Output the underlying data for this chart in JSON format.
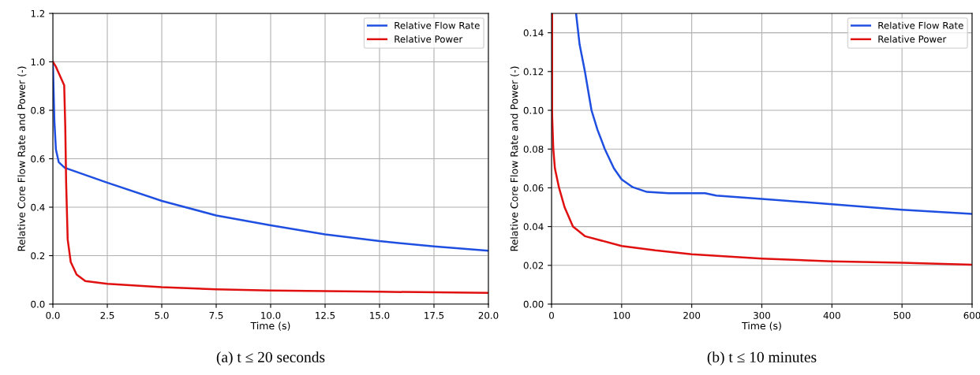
{
  "chart_data": [
    {
      "type": "line",
      "xlabel": "Time (s)",
      "ylabel": "Relative Core Flow Rate and Power (-)",
      "xlim": [
        0,
        20
      ],
      "ylim": [
        0,
        1.2
      ],
      "xticks": [
        {
          "value": 0,
          "label": "0.0"
        },
        2.5,
        {
          "value": 5,
          "label": "5.0"
        },
        7.5,
        {
          "value": 10,
          "label": "10.0"
        },
        12.5,
        {
          "value": 15,
          "label": "15.0"
        },
        17.5,
        {
          "value": 20,
          "label": "20.0"
        }
      ],
      "yticks": [
        {
          "value": 0,
          "label": "0.0"
        },
        0.2,
        0.4,
        0.6,
        0.8,
        {
          "value": 1,
          "label": "1.0"
        },
        1.2
      ],
      "grid": true,
      "legend": "top right",
      "annotations": [
        "(a) t ≤ 20 seconds"
      ],
      "series": [
        {
          "name": "Relative Flow Rate",
          "color": "#1f4fe0",
          "x": [
            0,
            0.07,
            0.14,
            0.27,
            0.54,
            2.5,
            5,
            7.5,
            10,
            12.5,
            15,
            17.5,
            20
          ],
          "values": [
            1.0,
            0.754,
            0.638,
            0.586,
            0.563,
            0.501,
            0.426,
            0.366,
            0.325,
            0.288,
            0.26,
            0.238,
            0.22
          ]
        },
        {
          "name": "Relative Power",
          "color": "#e01010",
          "x": [
            0,
            0.14,
            0.52,
            0.57,
            0.61,
            0.68,
            0.82,
            1.09,
            1.49,
            2.5,
            5,
            7.5,
            10,
            15,
            20
          ],
          "values": [
            1.0,
            0.98,
            0.903,
            0.73,
            0.5,
            0.267,
            0.174,
            0.122,
            0.095,
            0.084,
            0.07,
            0.061,
            0.056,
            0.051,
            0.046
          ]
        }
      ]
    },
    {
      "type": "line",
      "xlabel": "Time (s)",
      "ylabel": "Relative Core Flow Rate and Power (-)",
      "xlim": [
        0,
        600
      ],
      "ylim": [
        0,
        0.15
      ],
      "xticks": [
        0,
        100,
        200,
        300,
        400,
        500,
        600
      ],
      "yticks": [
        {
          "value": 0,
          "label": "0.00"
        },
        {
          "value": 0.02,
          "label": "0.02"
        },
        {
          "value": 0.04,
          "label": "0.04"
        },
        {
          "value": 0.06,
          "label": "0.06"
        },
        {
          "value": 0.08,
          "label": "0.08"
        },
        {
          "value": 0.1,
          "label": "0.10"
        },
        {
          "value": 0.12,
          "label": "0.12"
        },
        {
          "value": 0.14,
          "label": "0.14"
        }
      ],
      "grid": true,
      "legend": "top right",
      "annotations": [
        "(b) t ≤ 10 minutes"
      ],
      "series": [
        {
          "name": "Relative Flow Rate",
          "color": "#1f4fe0",
          "x": [
            35,
            40,
            47.6,
            57,
            65.5,
            76,
            89,
            100,
            116,
            136,
            167,
            219,
            235,
            300,
            400,
            500,
            600
          ],
          "values": [
            0.15,
            0.134,
            0.12,
            0.1,
            0.09,
            0.08,
            0.07,
            0.0643,
            0.0603,
            0.0579,
            0.0572,
            0.0572,
            0.056,
            0.0543,
            0.0515,
            0.0487,
            0.0465
          ]
        },
        {
          "name": "Relative Power",
          "color": "#e01010",
          "x": [
            0.8,
            0.8,
            2.5,
            4.8,
            10.7,
            18.6,
            30.5,
            48,
            100,
            148,
            200,
            300,
            400,
            500,
            600
          ],
          "values": [
            0.15,
            0.098,
            0.08,
            0.07,
            0.06,
            0.05,
            0.04,
            0.035,
            0.03,
            0.0277,
            0.0257,
            0.0235,
            0.0221,
            0.0213,
            0.0203
          ]
        }
      ]
    }
  ]
}
